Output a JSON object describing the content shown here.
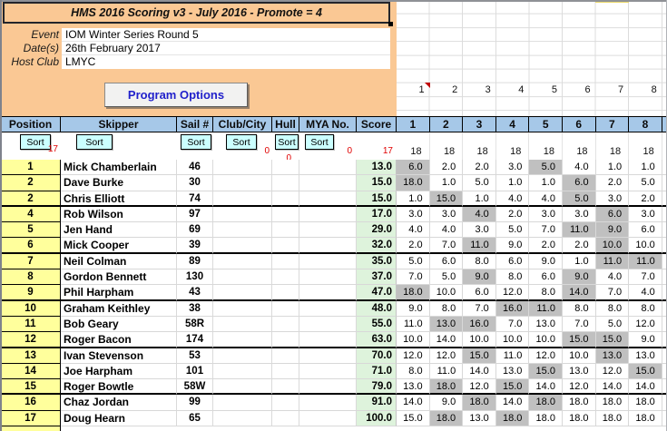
{
  "window": {
    "title_bar": "HMS 2016 Scoring v3 - July 2016 - Promote = 4"
  },
  "event_info": {
    "event_label": "Event",
    "event_value": "IOM Winter Series Round 5",
    "dates_label": "Date(s)",
    "dates_value": "26th February 2017",
    "host_label": "Host Club",
    "host_value": "LMYC"
  },
  "program_options_label": "Program Options",
  "race_numbers_row": [
    "1",
    "2",
    "3",
    "4",
    "5",
    "6",
    "7",
    "8"
  ],
  "table": {
    "columns": [
      "Position",
      "Skipper",
      "Sail #",
      "Club/City",
      "Hull",
      "MYA No.",
      "Score"
    ],
    "race_columns": [
      "1",
      "2",
      "3",
      "4",
      "5",
      "6",
      "7",
      "8"
    ],
    "sort": {
      "label": "Sort",
      "position_count": "17",
      "club_count": "0",
      "hull_count": "0",
      "mya_count": "0",
      "score_count": "17",
      "race_entries": [
        "18",
        "18",
        "18",
        "18",
        "18",
        "18",
        "18",
        "18"
      ]
    },
    "rows": [
      {
        "pos": "1",
        "skipper": "Mick Chamberlain",
        "sail": "46",
        "score": "13.0",
        "races": [
          "6.0",
          "2.0",
          "2.0",
          "3.0",
          "5.0",
          "4.0",
          "1.0",
          "1.0"
        ],
        "discards": [
          0,
          4
        ]
      },
      {
        "pos": "2",
        "skipper": "Dave Burke",
        "sail": "30",
        "score": "15.0",
        "races": [
          "18.0",
          "1.0",
          "5.0",
          "1.0",
          "1.0",
          "6.0",
          "2.0",
          "5.0"
        ],
        "discards": [
          0,
          5
        ]
      },
      {
        "pos": "2",
        "skipper": "Chris Elliott",
        "sail": "74",
        "score": "15.0",
        "races": [
          "1.0",
          "15.0",
          "1.0",
          "4.0",
          "4.0",
          "5.0",
          "3.0",
          "2.0"
        ],
        "discards": [
          1,
          5
        ]
      },
      {
        "pos": "4",
        "skipper": "Rob Wilson",
        "sail": "97",
        "score": "17.0",
        "races": [
          "3.0",
          "3.0",
          "4.0",
          "2.0",
          "3.0",
          "3.0",
          "6.0",
          "3.0"
        ],
        "discards": [
          2,
          6
        ]
      },
      {
        "pos": "5",
        "skipper": "Jen Hand",
        "sail": "69",
        "score": "29.0",
        "races": [
          "4.0",
          "4.0",
          "3.0",
          "5.0",
          "7.0",
          "11.0",
          "9.0",
          "6.0"
        ],
        "discards": [
          5,
          6
        ]
      },
      {
        "pos": "6",
        "skipper": "Mick Cooper",
        "sail": "39",
        "score": "32.0",
        "races": [
          "2.0",
          "7.0",
          "11.0",
          "9.0",
          "2.0",
          "2.0",
          "10.0",
          "10.0"
        ],
        "discards": [
          2,
          6
        ]
      },
      {
        "pos": "7",
        "skipper": "Neil Colman",
        "sail": "89",
        "score": "35.0",
        "races": [
          "5.0",
          "6.0",
          "8.0",
          "6.0",
          "9.0",
          "1.0",
          "11.0",
          "11.0"
        ],
        "discards": [
          6,
          7
        ]
      },
      {
        "pos": "8",
        "skipper": "Gordon Bennett",
        "sail": "130",
        "score": "37.0",
        "races": [
          "7.0",
          "5.0",
          "9.0",
          "8.0",
          "6.0",
          "9.0",
          "4.0",
          "7.0"
        ],
        "discards": [
          2,
          5
        ]
      },
      {
        "pos": "9",
        "skipper": "Phil Harpham",
        "sail": "43",
        "score": "47.0",
        "races": [
          "18.0",
          "10.0",
          "6.0",
          "12.0",
          "8.0",
          "14.0",
          "7.0",
          "4.0"
        ],
        "discards": [
          0,
          5
        ]
      },
      {
        "pos": "10",
        "skipper": "Graham Keithley",
        "sail": "38",
        "score": "48.0",
        "races": [
          "9.0",
          "8.0",
          "7.0",
          "16.0",
          "11.0",
          "8.0",
          "8.0",
          "8.0"
        ],
        "discards": [
          3,
          4
        ]
      },
      {
        "pos": "11",
        "skipper": "Bob Geary",
        "sail": "58R",
        "score": "55.0",
        "races": [
          "11.0",
          "13.0",
          "16.0",
          "7.0",
          "13.0",
          "7.0",
          "5.0",
          "12.0"
        ],
        "discards": [
          1,
          2
        ]
      },
      {
        "pos": "12",
        "skipper": "Roger Bacon",
        "sail": "174",
        "score": "63.0",
        "races": [
          "10.0",
          "14.0",
          "10.0",
          "10.0",
          "10.0",
          "15.0",
          "15.0",
          "9.0"
        ],
        "discards": [
          5,
          6
        ]
      },
      {
        "pos": "13",
        "skipper": "Ivan Stevenson",
        "sail": "53",
        "score": "70.0",
        "races": [
          "12.0",
          "12.0",
          "15.0",
          "11.0",
          "12.0",
          "10.0",
          "13.0",
          "13.0"
        ],
        "discards": [
          2,
          6
        ]
      },
      {
        "pos": "14",
        "skipper": "Joe Harpham",
        "sail": "101",
        "score": "71.0",
        "races": [
          "8.0",
          "11.0",
          "14.0",
          "13.0",
          "15.0",
          "13.0",
          "12.0",
          "15.0"
        ],
        "discards": [
          4,
          7
        ]
      },
      {
        "pos": "15",
        "skipper": "Roger Bowtle",
        "sail": "58W",
        "score": "79.0",
        "races": [
          "13.0",
          "18.0",
          "12.0",
          "15.0",
          "14.0",
          "12.0",
          "14.0",
          "14.0"
        ],
        "discards": [
          1,
          3
        ]
      },
      {
        "pos": "16",
        "skipper": "Chaz Jordan",
        "sail": "99",
        "score": "91.0",
        "races": [
          "14.0",
          "9.0",
          "18.0",
          "14.0",
          "18.0",
          "18.0",
          "18.0",
          "18.0"
        ],
        "discards": [
          2,
          4
        ]
      },
      {
        "pos": "17",
        "skipper": "Doug Hearn",
        "sail": "65",
        "score": "100.0",
        "races": [
          "15.0",
          "18.0",
          "13.0",
          "18.0",
          "18.0",
          "18.0",
          "18.0",
          "18.0"
        ],
        "discards": [
          1,
          3
        ]
      }
    ]
  },
  "colors": {
    "panel_peach": "#FAC894",
    "header_blue": "#A6C8E8",
    "position_yellow": "#FFFF9C",
    "score_green": "#DEF3DC",
    "discard_gray": "#C0C0C0",
    "sort_button_cyan": "#CBFFFF",
    "count_red": "#E00000",
    "button_text_blue": "#2121CB",
    "comment_marker_red": "#C00000"
  }
}
